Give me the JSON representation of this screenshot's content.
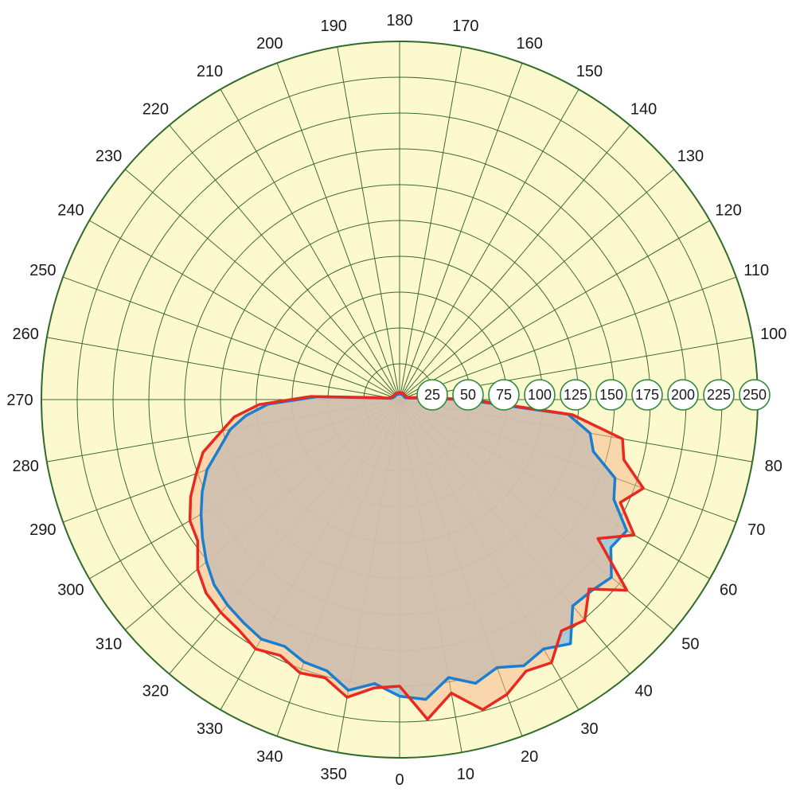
{
  "chart_data": {
    "type": "polar-area",
    "title": "",
    "angular_direction": "counterclockwise-labels-with-0-at-bottom",
    "angle_ticks": [
      0,
      10,
      20,
      30,
      40,
      50,
      60,
      70,
      80,
      100,
      110,
      120,
      130,
      140,
      150,
      160,
      170,
      180,
      190,
      200,
      210,
      220,
      230,
      240,
      250,
      260,
      270,
      280,
      290,
      300,
      310,
      320,
      330,
      340,
      350
    ],
    "radial_ticks": [
      25,
      50,
      75,
      100,
      125,
      150,
      175,
      200,
      225,
      250
    ],
    "rlim": [
      0,
      250
    ],
    "grid": true,
    "series": [
      {
        "name": "",
        "color": "#1a7fd0",
        "fill": "#9fc8d8",
        "points": [
          [
            0,
            207
          ],
          [
            5,
            210
          ],
          [
            10,
            197
          ],
          [
            15,
            205
          ],
          [
            20,
            199
          ],
          [
            25,
            205
          ],
          [
            30,
            201
          ],
          [
            35,
            208
          ],
          [
            40,
            188
          ],
          [
            45,
            189
          ],
          [
            50,
            193
          ],
          [
            55,
            180
          ],
          [
            60,
            183
          ],
          [
            65,
            165
          ],
          [
            70,
            160
          ],
          [
            75,
            140
          ],
          [
            80,
            135
          ],
          [
            85,
            118
          ],
          [
            90,
            45
          ],
          [
            95,
            12
          ],
          [
            100,
            6
          ],
          [
            110,
            4
          ],
          [
            150,
            4
          ],
          [
            180,
            4
          ],
          [
            210,
            4
          ],
          [
            240,
            4
          ],
          [
            255,
            5
          ],
          [
            262,
            6
          ],
          [
            265,
            12
          ],
          [
            268,
            58
          ],
          [
            272,
            92
          ],
          [
            276,
            108
          ],
          [
            280,
            120
          ],
          [
            285,
            130
          ],
          [
            290,
            143
          ],
          [
            295,
            152
          ],
          [
            300,
            160
          ],
          [
            305,
            168
          ],
          [
            310,
            176
          ],
          [
            315,
            183
          ],
          [
            320,
            187
          ],
          [
            325,
            190
          ],
          [
            330,
            193
          ],
          [
            335,
            190
          ],
          [
            340,
            195
          ],
          [
            345,
            196
          ],
          [
            350,
            206
          ],
          [
            355,
            199
          ]
        ]
      },
      {
        "name": "",
        "color": "#e8291f",
        "fill": "#f6b98f",
        "points": [
          [
            0,
            200
          ],
          [
            5,
            224
          ],
          [
            10,
            208
          ],
          [
            15,
            224
          ],
          [
            20,
            219
          ],
          [
            25,
            209
          ],
          [
            30,
            212
          ],
          [
            35,
            197
          ],
          [
            40,
            201
          ],
          [
            45,
            187
          ],
          [
            50,
            207
          ],
          [
            55,
            169
          ],
          [
            60,
            189
          ],
          [
            65,
            170
          ],
          [
            70,
            181
          ],
          [
            75,
            162
          ],
          [
            80,
            158
          ],
          [
            85,
            121
          ],
          [
            90,
            50
          ],
          [
            95,
            16
          ],
          [
            100,
            8
          ],
          [
            110,
            5
          ],
          [
            150,
            5
          ],
          [
            180,
            5
          ],
          [
            210,
            5
          ],
          [
            240,
            5
          ],
          [
            255,
            6
          ],
          [
            262,
            8
          ],
          [
            265,
            16
          ],
          [
            268,
            62
          ],
          [
            272,
            98
          ],
          [
            276,
            116
          ],
          [
            280,
            126
          ],
          [
            285,
            142
          ],
          [
            290,
            151
          ],
          [
            295,
            161
          ],
          [
            300,
            169
          ],
          [
            305,
            172
          ],
          [
            310,
            184
          ],
          [
            315,
            191
          ],
          [
            320,
            194
          ],
          [
            325,
            196
          ],
          [
            330,
            201
          ],
          [
            335,
            197
          ],
          [
            340,
            203
          ],
          [
            345,
            201
          ],
          [
            350,
            211
          ],
          [
            355,
            202
          ]
        ]
      }
    ],
    "colors": {
      "background": "#fdf9cf",
      "grid": "#3e6b2a",
      "overlap_fill": "#c09a82"
    }
  }
}
